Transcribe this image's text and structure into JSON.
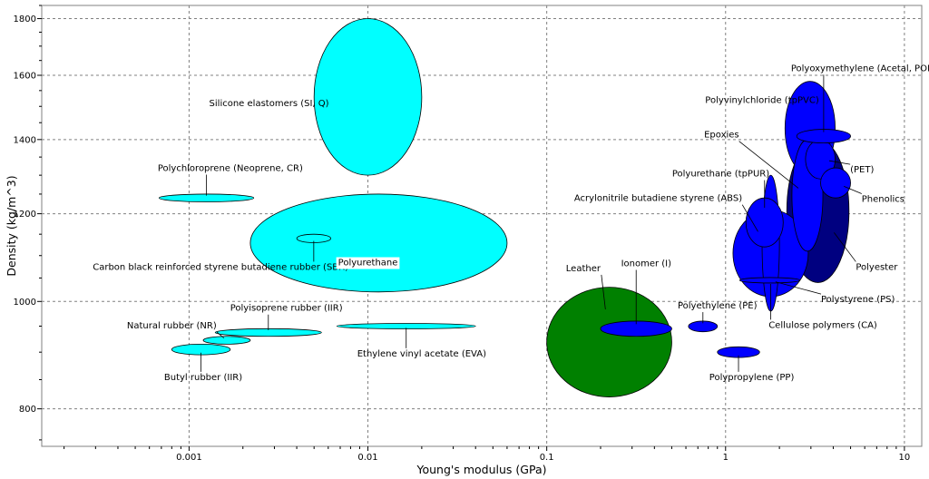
{
  "chart_data": {
    "type": "scatter",
    "subtype": "material-property-bubble-chart",
    "xlabel": "Young's modulus (GPa)",
    "ylabel": "Density (kg/m^3)",
    "xscale": "log",
    "yscale": "log",
    "xlim": [
      0.00015,
      12.5
    ],
    "ylim": [
      740,
      1850
    ],
    "xticks": [
      {
        "value": 0.001,
        "label": "0.001"
      },
      {
        "value": 0.01,
        "label": "0.01"
      },
      {
        "value": 0.1,
        "label": "0.1"
      },
      {
        "value": 1,
        "label": "1"
      },
      {
        "value": 10,
        "label": "10"
      }
    ],
    "yticks": [
      {
        "value": 800,
        "label": "800"
      },
      {
        "value": 1000,
        "label": "1000"
      },
      {
        "value": 1200,
        "label": "1200"
      },
      {
        "value": 1400,
        "label": "1400"
      },
      {
        "value": 1600,
        "label": "1600"
      },
      {
        "value": 1800,
        "label": "1800"
      }
    ],
    "grid": true,
    "colors": {
      "elastomer": "#00ffff",
      "natural": "#008000",
      "polymer": "#0000ff",
      "polymer_dark": "#000080",
      "label_box": "#ffffff"
    },
    "materials": [
      {
        "name": "Silicone elastomers (SI, Q)",
        "group": "elastomer",
        "E": [
          0.005,
          0.02
        ],
        "rho": [
          1300,
          1800
        ],
        "label_at": [
          0.0028,
          1510
        ]
      },
      {
        "name": "Polychloroprene (Neoprene, CR)",
        "group": "elastomer",
        "E": [
          0.00068,
          0.0023
        ],
        "rho": [
          1230,
          1250
        ],
        "label_at": [
          0.0017,
          1320
        ]
      },
      {
        "name": "Carbon black reinforced styrene butadiene rubber (SBR)",
        "group": "elastomer",
        "E": [
          0.004,
          0.0062
        ],
        "rho": [
          1130,
          1150
        ],
        "label_at": [
          0.0015,
          1075
        ]
      },
      {
        "name": "Polyurethane",
        "group": "elastomer",
        "E": [
          0.0022,
          0.06
        ],
        "rho": [
          1020,
          1250
        ],
        "label_at": [
          0.01,
          1085
        ],
        "boxed": true
      },
      {
        "name": "Polyisoprene rubber (IIR)",
        "group": "elastomer",
        "E": [
          0.0014,
          0.0055
        ],
        "rho": [
          930,
          945
        ],
        "label_at": [
          0.0035,
          987
        ]
      },
      {
        "name": "Natural rubber (NR)",
        "group": "elastomer",
        "E": [
          0.0012,
          0.0022
        ],
        "rho": [
          915,
          930
        ],
        "label_at": [
          0.0008,
          952
        ]
      },
      {
        "name": "Butyl rubber (IIR)",
        "group": "elastomer",
        "E": [
          0.0008,
          0.0017
        ],
        "rho": [
          895,
          915
        ],
        "label_at": [
          0.0012,
          855
        ]
      },
      {
        "name": "Ethylene vinyl acetate (EVA)",
        "group": "elastomer",
        "E": [
          0.0067,
          0.04
        ],
        "rho": [
          945,
          955
        ],
        "label_at": [
          0.02,
          898
        ]
      },
      {
        "name": "Leather",
        "group": "natural",
        "E": [
          0.1,
          0.5
        ],
        "rho": [
          820,
          1030
        ],
        "label_at": [
          0.16,
          1072
        ]
      },
      {
        "name": "Ionomer (I)",
        "group": "polymer",
        "E": [
          0.2,
          0.5
        ],
        "rho": [
          930,
          960
        ],
        "label_at": [
          0.36,
          1083
        ]
      },
      {
        "name": "Polyethylene (PE)",
        "group": "polymer",
        "E": [
          0.62,
          0.9
        ],
        "rho": [
          939,
          960
        ],
        "label_at": [
          0.9,
          992
        ]
      },
      {
        "name": "Polypropylene (PP)",
        "group": "polymer",
        "E": [
          0.9,
          1.55
        ],
        "rho": [
          890,
          910
        ],
        "label_at": [
          1.4,
          855
        ]
      },
      {
        "name": "Polyoxymethylene (Acetal, POM)",
        "group": "polymer",
        "E": [
          2.5,
          5.0
        ],
        "rho": [
          1390,
          1430
        ],
        "label_at": [
          6,
          1625
        ]
      },
      {
        "name": "Polyvinylchloride (tpPVC)",
        "group": "polymer",
        "E": [
          2.15,
          4.1
        ],
        "rho": [
          1300,
          1580
        ],
        "label_at": [
          1.6,
          1520
        ]
      },
      {
        "name": "Epoxies",
        "group": "polymer",
        "E": [
          2.35,
          3.5
        ],
        "rho": [
          1110,
          1400
        ],
        "label_at": [
          0.95,
          1415
        ]
      },
      {
        "name": "Polyurethane (tpPUR)",
        "group": "polymer",
        "E": [
          1.3,
          2.1
        ],
        "rho": [
          1120,
          1240
        ],
        "label_at": [
          0.94,
          1305
        ]
      },
      {
        "name": "Acrylonitrile butadiene styrene (ABS)",
        "group": "polymer",
        "E": [
          1.1,
          2.9
        ],
        "rho": [
          1010,
          1210
        ],
        "label_at": [
          0.42,
          1240
        ]
      },
      {
        "name": "Polystyrene (PS)",
        "group": "polymer",
        "E": [
          1.2,
          2.6
        ],
        "rho": [
          1040,
          1050
        ],
        "label_at": [
          5.5,
          1005
        ]
      },
      {
        "name": "Cellulose polymers (CA)",
        "group": "polymer",
        "E": [
          1.6,
          2.0
        ],
        "rho": [
          980,
          1300
        ],
        "label_at": [
          3.5,
          953
        ]
      },
      {
        "name": "(PET)",
        "group": "polymer",
        "E": [
          2.8,
          4.1
        ],
        "rho": [
          1290,
          1400
        ],
        "label_at": [
          5.8,
          1316
        ]
      },
      {
        "name": "Phenolics",
        "group": "polymer",
        "E": [
          3.4,
          5.0
        ],
        "rho": [
          1240,
          1320
        ],
        "label_at": [
          7.6,
          1238
        ]
      },
      {
        "name": "Polyester",
        "group": "polymer_dark",
        "E": [
          2.2,
          4.9
        ],
        "rho": [
          1040,
          1400
        ],
        "label_at": [
          7,
          1075
        ]
      }
    ]
  }
}
